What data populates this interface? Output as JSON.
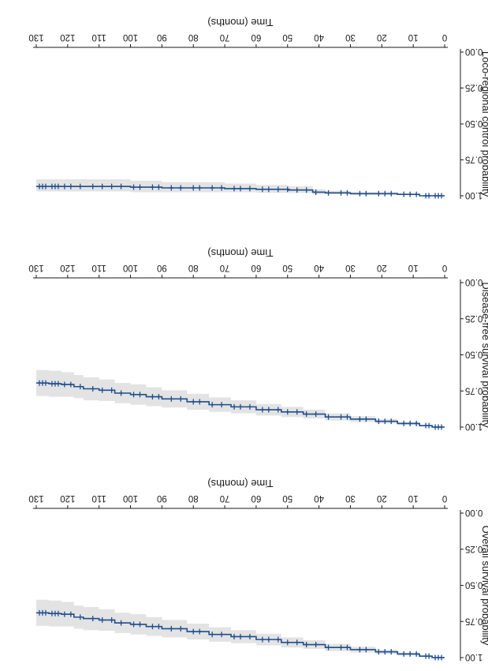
{
  "colors": {
    "line": "#1f4e8c",
    "band": "#e3e3e3",
    "axis": "#1a1a1a"
  },
  "chart_data": [
    {
      "type": "line",
      "title": "",
      "xlabel": "Time (months)",
      "ylabel": "Overall survival probability",
      "xlim": [
        0,
        130
      ],
      "ylim": [
        0,
        1
      ],
      "xticks": [
        0,
        10,
        20,
        30,
        40,
        50,
        60,
        70,
        80,
        90,
        100,
        110,
        120,
        130
      ],
      "yticks": [
        0.0,
        0.25,
        0.5,
        0.75,
        1.0
      ],
      "ytick_labels": [
        "0.00",
        "0.25",
        "0.50",
        "0.75",
        "1.00"
      ],
      "grid": false,
      "legend": "none",
      "series": [
        {
          "x": [
            0,
            4,
            8,
            15,
            22,
            30,
            38,
            45,
            52,
            60,
            68,
            75,
            82,
            90,
            95,
            100,
            105,
            110,
            115,
            118,
            122,
            126,
            130
          ],
          "y": [
            1.0,
            0.99,
            0.975,
            0.96,
            0.945,
            0.93,
            0.91,
            0.895,
            0.875,
            0.855,
            0.84,
            0.82,
            0.8,
            0.785,
            0.77,
            0.76,
            0.74,
            0.73,
            0.72,
            0.7,
            0.695,
            0.69,
            0.69
          ],
          "ci_lower": [
            1.0,
            0.985,
            0.965,
            0.945,
            0.925,
            0.905,
            0.88,
            0.86,
            0.835,
            0.81,
            0.79,
            0.765,
            0.74,
            0.72,
            0.7,
            0.69,
            0.665,
            0.65,
            0.64,
            0.615,
            0.605,
            0.6,
            0.6
          ],
          "ci_upper": [
            1.0,
            0.995,
            0.985,
            0.975,
            0.965,
            0.955,
            0.94,
            0.93,
            0.915,
            0.9,
            0.89,
            0.875,
            0.86,
            0.85,
            0.84,
            0.83,
            0.815,
            0.81,
            0.8,
            0.785,
            0.785,
            0.78,
            0.78
          ],
          "censor_x": [
            1,
            2,
            3,
            5,
            6,
            9,
            11,
            13,
            17,
            19,
            21,
            25,
            27,
            31,
            33,
            37,
            41,
            44,
            47,
            50,
            53,
            56,
            58,
            62,
            65,
            67,
            71,
            74,
            78,
            80,
            84,
            87,
            91,
            93,
            97,
            99,
            103,
            106,
            109,
            112,
            116,
            119,
            121,
            123,
            124,
            125,
            127,
            128,
            129
          ]
        }
      ]
    },
    {
      "type": "line",
      "title": "",
      "xlabel": "Time (months)",
      "ylabel": "Disease-free survival probability",
      "xlim": [
        0,
        130
      ],
      "ylim": [
        0,
        1
      ],
      "xticks": [
        0,
        10,
        20,
        30,
        40,
        50,
        60,
        70,
        80,
        90,
        100,
        110,
        120,
        130
      ],
      "yticks": [
        0.0,
        0.25,
        0.5,
        0.75,
        1.0
      ],
      "ytick_labels": [
        "0.00",
        "0.25",
        "0.50",
        "0.75",
        "1.00"
      ],
      "grid": false,
      "legend": "none",
      "series": [
        {
          "x": [
            0,
            4,
            8,
            15,
            22,
            30,
            38,
            45,
            52,
            60,
            68,
            75,
            82,
            90,
            95,
            100,
            105,
            110,
            115,
            118,
            122,
            126,
            130
          ],
          "y": [
            1.0,
            0.99,
            0.975,
            0.96,
            0.945,
            0.93,
            0.91,
            0.895,
            0.88,
            0.86,
            0.845,
            0.825,
            0.805,
            0.79,
            0.775,
            0.765,
            0.745,
            0.735,
            0.72,
            0.705,
            0.7,
            0.695,
            0.695
          ],
          "ci_lower": [
            1.0,
            0.985,
            0.965,
            0.945,
            0.925,
            0.905,
            0.88,
            0.86,
            0.84,
            0.815,
            0.795,
            0.77,
            0.745,
            0.725,
            0.705,
            0.695,
            0.67,
            0.655,
            0.64,
            0.62,
            0.61,
            0.605,
            0.605
          ],
          "ci_upper": [
            1.0,
            0.995,
            0.985,
            0.975,
            0.965,
            0.955,
            0.94,
            0.93,
            0.92,
            0.905,
            0.895,
            0.88,
            0.865,
            0.855,
            0.845,
            0.835,
            0.82,
            0.815,
            0.8,
            0.79,
            0.79,
            0.785,
            0.785
          ],
          "censor_x": [
            1,
            2,
            3,
            5,
            6,
            9,
            11,
            13,
            17,
            19,
            21,
            25,
            27,
            31,
            33,
            37,
            41,
            44,
            47,
            50,
            53,
            56,
            58,
            62,
            65,
            67,
            71,
            74,
            78,
            80,
            84,
            87,
            91,
            93,
            97,
            99,
            103,
            106,
            109,
            112,
            116,
            119,
            121,
            123,
            124,
            125,
            127,
            128,
            129
          ]
        }
      ]
    },
    {
      "type": "line",
      "title": "",
      "xlabel": "Time (months)",
      "ylabel": "Loco-regional control probability",
      "xlim": [
        0,
        130
      ],
      "ylim": [
        0,
        1
      ],
      "xticks": [
        0,
        10,
        20,
        30,
        40,
        50,
        60,
        70,
        80,
        90,
        100,
        110,
        120,
        130
      ],
      "yticks": [
        0.0,
        0.25,
        0.5,
        0.75,
        1.0
      ],
      "ytick_labels": [
        "0.00",
        "0.25",
        "0.50",
        "0.75",
        "1.00"
      ],
      "grid": false,
      "legend": "none",
      "series": [
        {
          "x": [
            0,
            8,
            15,
            30,
            38,
            42,
            50,
            60,
            70,
            90,
            100,
            130
          ],
          "y": [
            1.0,
            0.99,
            0.985,
            0.98,
            0.975,
            0.96,
            0.955,
            0.95,
            0.945,
            0.94,
            0.935,
            0.935
          ],
          "ci_lower": [
            1.0,
            0.985,
            0.975,
            0.965,
            0.955,
            0.935,
            0.925,
            0.915,
            0.905,
            0.895,
            0.885,
            0.885
          ],
          "ci_upper": [
            1.0,
            0.995,
            0.995,
            0.99,
            0.99,
            0.98,
            0.98,
            0.975,
            0.975,
            0.975,
            0.97,
            0.97
          ],
          "censor_x": [
            1,
            2,
            3,
            5,
            6,
            9,
            11,
            13,
            17,
            19,
            21,
            25,
            27,
            31,
            33,
            37,
            41,
            44,
            47,
            50,
            53,
            56,
            58,
            62,
            65,
            67,
            71,
            74,
            78,
            80,
            84,
            87,
            91,
            93,
            97,
            99,
            103,
            106,
            109,
            112,
            116,
            119,
            121,
            123,
            124,
            125,
            127,
            128,
            129
          ]
        }
      ]
    }
  ]
}
